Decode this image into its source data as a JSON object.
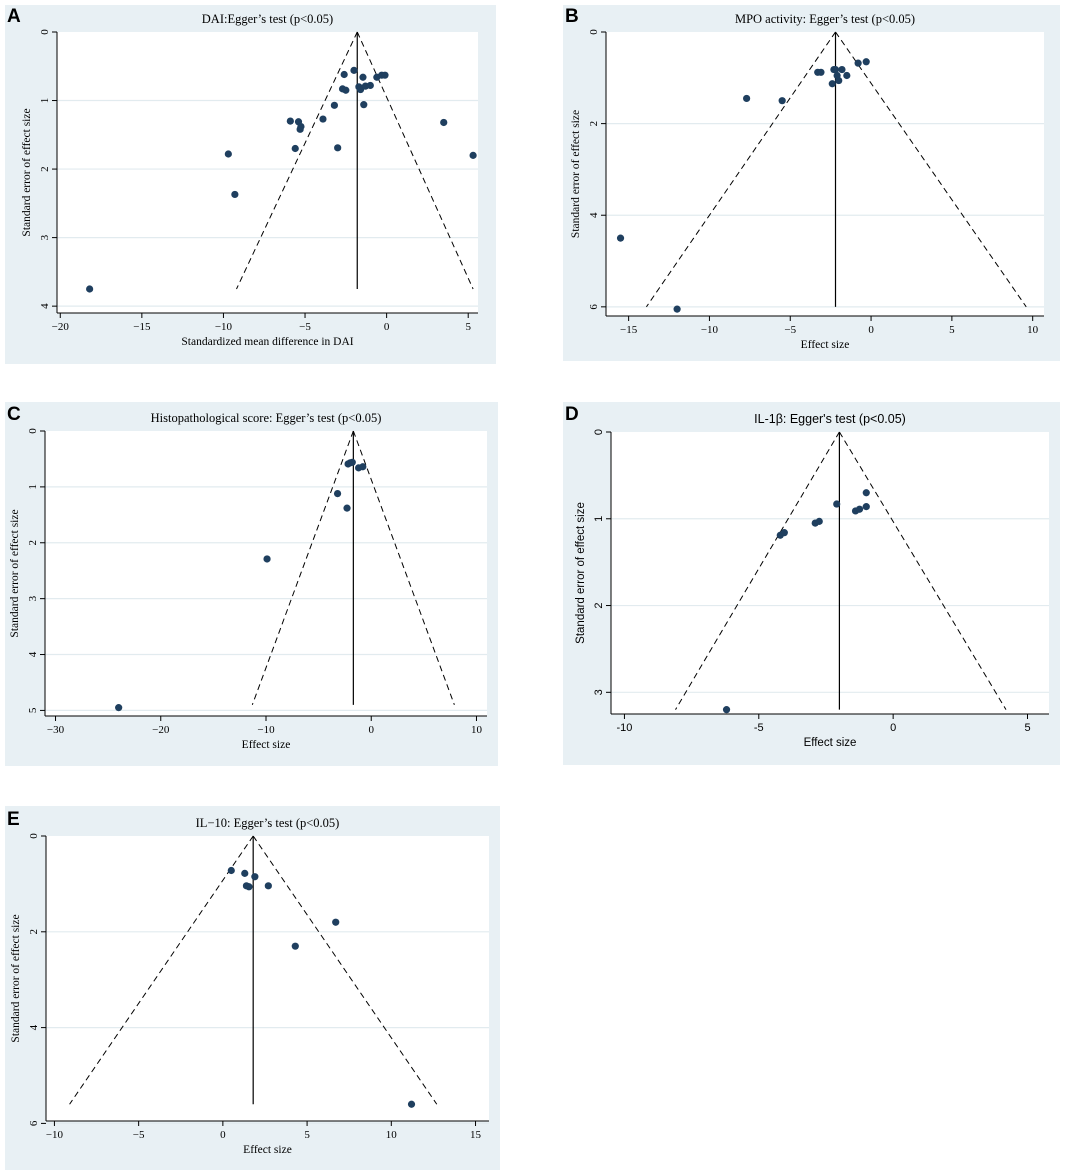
{
  "chart_data": [
    {
      "type": "scatter",
      "panel": "A",
      "title": "DAI:Egger’s test (p<0.05)",
      "xlabel": "Standardized mean difference in DAI",
      "ylabel": "Standard error of effect size",
      "xlim": [
        -20.2,
        5.6
      ],
      "ylim": [
        0,
        4.1
      ],
      "y_inverted": true,
      "xticks": [
        -20,
        -15,
        -10,
        -5,
        0,
        5
      ],
      "yticks": [
        0,
        1,
        2,
        3,
        4
      ],
      "tick_labels_x": [
        "−20",
        "−15",
        "−10",
        "−5",
        "0",
        "5"
      ],
      "tick_labels_y": [
        "0",
        "1",
        "2",
        "3",
        "4"
      ],
      "pooled_effect": -1.8,
      "funnel_top": [
        -1.8,
        0
      ],
      "funnel_bottom": [
        [
          -9.2,
          3.75
        ],
        [
          5.3,
          3.75
        ]
      ],
      "points": [
        {
          "x": -18.2,
          "y": 3.75
        },
        {
          "x": -9.7,
          "y": 1.78
        },
        {
          "x": -9.3,
          "y": 2.37
        },
        {
          "x": -5.9,
          "y": 1.3
        },
        {
          "x": -5.6,
          "y": 1.7
        },
        {
          "x": -5.4,
          "y": 1.31
        },
        {
          "x": -5.3,
          "y": 1.42
        },
        {
          "x": -5.25,
          "y": 1.38
        },
        {
          "x": -3.9,
          "y": 1.27
        },
        {
          "x": -3.2,
          "y": 1.07
        },
        {
          "x": -3.0,
          "y": 1.69
        },
        {
          "x": -2.7,
          "y": 0.83
        },
        {
          "x": -2.5,
          "y": 0.85
        },
        {
          "x": -2.6,
          "y": 0.62
        },
        {
          "x": -2.0,
          "y": 0.56
        },
        {
          "x": -1.7,
          "y": 0.8
        },
        {
          "x": -1.6,
          "y": 0.84
        },
        {
          "x": -1.45,
          "y": 0.66
        },
        {
          "x": -1.3,
          "y": 0.79
        },
        {
          "x": -1.0,
          "y": 0.78
        },
        {
          "x": -0.6,
          "y": 0.66
        },
        {
          "x": -0.3,
          "y": 0.63
        },
        {
          "x": -0.1,
          "y": 0.63
        },
        {
          "x": -1.4,
          "y": 1.06
        },
        {
          "x": 3.5,
          "y": 1.32
        },
        {
          "x": 5.3,
          "y": 1.8
        }
      ]
    },
    {
      "type": "scatter",
      "panel": "B",
      "title": "MPO activity: Egger’s test (p<0.05)",
      "xlabel": "Effect size",
      "ylabel": "Standard error of effect size",
      "xlim": [
        -16.4,
        10.7
      ],
      "ylim": [
        0,
        6.2
      ],
      "y_inverted": true,
      "xticks": [
        -15,
        -10,
        -5,
        0,
        5,
        10
      ],
      "yticks": [
        0,
        2,
        4,
        6
      ],
      "tick_labels_x": [
        "−15",
        "−10",
        "−5",
        "0",
        "5",
        "10"
      ],
      "tick_labels_y": [
        "0",
        "2",
        "4",
        "6"
      ],
      "pooled_effect": -2.2,
      "funnel_top": [
        -2.2,
        0
      ],
      "funnel_bottom": [
        [
          -13.9,
          6.0
        ],
        [
          9.6,
          6.0
        ]
      ],
      "points": [
        {
          "x": -15.5,
          "y": 4.5
        },
        {
          "x": -12.0,
          "y": 6.05
        },
        {
          "x": -7.7,
          "y": 1.45
        },
        {
          "x": -5.5,
          "y": 1.5
        },
        {
          "x": -3.3,
          "y": 0.88
        },
        {
          "x": -3.1,
          "y": 0.88
        },
        {
          "x": -2.3,
          "y": 0.82
        },
        {
          "x": -2.2,
          "y": 0.82
        },
        {
          "x": -2.1,
          "y": 0.95
        },
        {
          "x": -1.8,
          "y": 0.82
        },
        {
          "x": -1.5,
          "y": 0.95
        },
        {
          "x": -2.4,
          "y": 1.13
        },
        {
          "x": -2.0,
          "y": 1.06
        },
        {
          "x": -0.8,
          "y": 0.68
        },
        {
          "x": -0.3,
          "y": 0.65
        }
      ]
    },
    {
      "type": "scatter",
      "panel": "C",
      "title": "Histopathological score: Egger’s test (p<0.05)",
      "xlabel": "Effect size",
      "ylabel": "Standard error of effect size",
      "xlim": [
        -31,
        11
      ],
      "ylim": [
        0,
        5.1
      ],
      "y_inverted": true,
      "xticks": [
        -30,
        -20,
        -10,
        0,
        10
      ],
      "yticks": [
        0,
        1,
        2,
        3,
        4,
        5
      ],
      "tick_labels_x": [
        "−30",
        "−20",
        "−10",
        "0",
        "10"
      ],
      "tick_labels_y": [
        "0",
        "1",
        "2",
        "3",
        "4",
        "5"
      ],
      "pooled_effect": -1.7,
      "funnel_top": [
        -1.7,
        0
      ],
      "funnel_bottom": [
        [
          -11.3,
          4.9
        ],
        [
          7.9,
          4.9
        ]
      ],
      "points": [
        {
          "x": -24.0,
          "y": 4.95
        },
        {
          "x": -9.9,
          "y": 2.29
        },
        {
          "x": -3.2,
          "y": 1.12
        },
        {
          "x": -2.3,
          "y": 1.38
        },
        {
          "x": -2.2,
          "y": 0.59
        },
        {
          "x": -2.0,
          "y": 0.57
        },
        {
          "x": -1.8,
          "y": 0.56
        },
        {
          "x": -1.2,
          "y": 0.66
        },
        {
          "x": -0.8,
          "y": 0.64
        }
      ]
    },
    {
      "type": "scatter",
      "panel": "D",
      "title": "IL-1β: Egger's test (p<0.05)",
      "xlabel": "Effect size",
      "ylabel": "Standard error of effect size",
      "xlim": [
        -10.5,
        5.8
      ],
      "ylim": [
        0,
        3.25
      ],
      "y_inverted": true,
      "xticks": [
        -10,
        -5,
        0,
        5
      ],
      "yticks": [
        0,
        1,
        2,
        3
      ],
      "tick_labels_x": [
        "-10",
        "-5",
        "0",
        "5"
      ],
      "tick_labels_y": [
        "0",
        "1",
        "2",
        "3"
      ],
      "pooled_effect": -2.0,
      "funnel_top": [
        -2.0,
        0
      ],
      "funnel_bottom": [
        [
          -8.1,
          3.2
        ],
        [
          4.2,
          3.2
        ]
      ],
      "points": [
        {
          "x": -6.2,
          "y": 3.2
        },
        {
          "x": -4.2,
          "y": 1.19
        },
        {
          "x": -4.05,
          "y": 1.16
        },
        {
          "x": -2.9,
          "y": 1.05
        },
        {
          "x": -2.75,
          "y": 1.03
        },
        {
          "x": -2.1,
          "y": 0.83
        },
        {
          "x": -1.4,
          "y": 0.91
        },
        {
          "x": -1.25,
          "y": 0.89
        },
        {
          "x": -1.0,
          "y": 0.86
        },
        {
          "x": -1.0,
          "y": 0.7
        }
      ]
    },
    {
      "type": "scatter",
      "panel": "E",
      "title": "IL−10: Egger’s test (p<0.05)",
      "xlabel": "Effect size",
      "ylabel": "Standard error of effect size",
      "xlim": [
        -10.5,
        15.8
      ],
      "ylim": [
        0,
        5.95
      ],
      "y_inverted": true,
      "xticks": [
        -10,
        -5,
        0,
        5,
        10,
        15
      ],
      "yticks": [
        0,
        2,
        4,
        6
      ],
      "tick_labels_x": [
        "−10",
        "−5",
        "0",
        "5",
        "10",
        "15"
      ],
      "tick_labels_y": [
        "0",
        "2",
        "4",
        "6"
      ],
      "pooled_effect": 1.8,
      "funnel_top": [
        1.8,
        0
      ],
      "funnel_bottom": [
        [
          -9.1,
          5.6
        ],
        [
          12.7,
          5.6
        ]
      ],
      "points": [
        {
          "x": 0.5,
          "y": 0.72
        },
        {
          "x": 1.3,
          "y": 0.78
        },
        {
          "x": 1.4,
          "y": 1.04
        },
        {
          "x": 1.55,
          "y": 1.06
        },
        {
          "x": 1.9,
          "y": 0.85
        },
        {
          "x": 2.7,
          "y": 1.04
        },
        {
          "x": 4.3,
          "y": 2.3
        },
        {
          "x": 6.7,
          "y": 1.8
        },
        {
          "x": 11.2,
          "y": 5.6
        }
      ]
    }
  ]
}
